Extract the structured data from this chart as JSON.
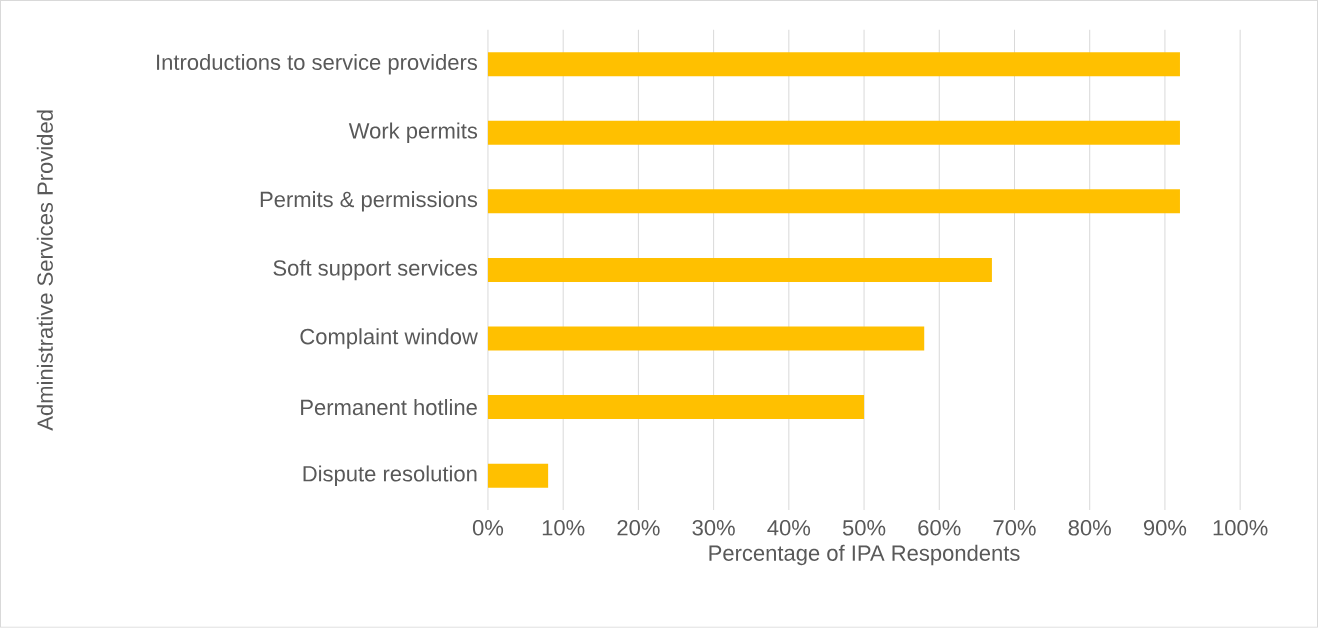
{
  "chart_data": {
    "type": "bar",
    "orientation": "horizontal",
    "xlabel": "Percentage of IPA Respondents",
    "ylabel": "Administrative Services Provided",
    "categories": [
      "Introductions to service providers",
      "Work permits",
      "Permits & permissions",
      "Soft support services",
      "Complaint window",
      "Permanent hotline",
      "Dispute resolution"
    ],
    "values": [
      92,
      92,
      92,
      67,
      58,
      50,
      8
    ],
    "color": "#ffc000",
    "xlim": [
      0,
      100
    ],
    "xticks": [
      {
        "value": 0,
        "label": "0%"
      },
      {
        "value": 10,
        "label": "10%"
      },
      {
        "value": 20,
        "label": "20%"
      },
      {
        "value": 30,
        "label": "30%"
      },
      {
        "value": 40,
        "label": "40%"
      },
      {
        "value": 50,
        "label": "50%"
      },
      {
        "value": 60,
        "label": "60%"
      },
      {
        "value": 70,
        "label": "70%"
      },
      {
        "value": 80,
        "label": "80%"
      },
      {
        "value": 90,
        "label": "90%"
      },
      {
        "value": 100,
        "label": "100%"
      }
    ],
    "grid": "x"
  }
}
